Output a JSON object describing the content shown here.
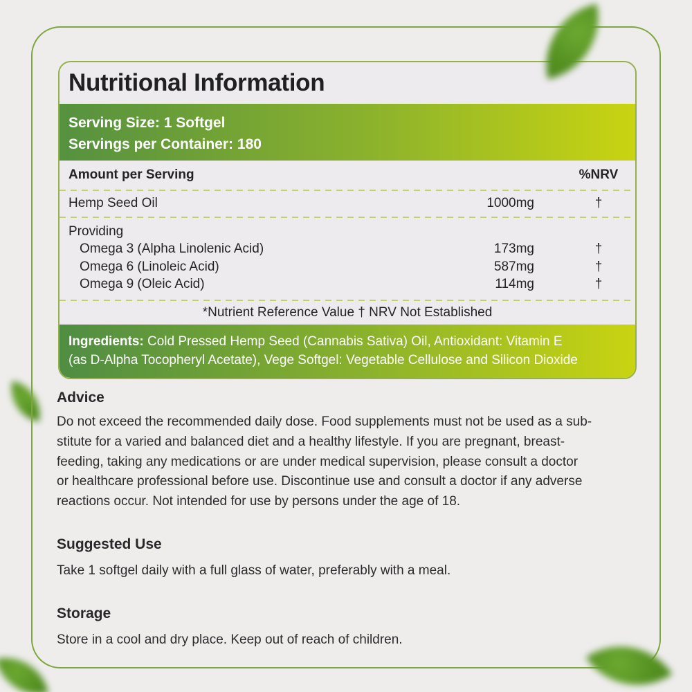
{
  "colors": {
    "page_bg": "#eeedec",
    "panel_bg": "#edebee",
    "frame_green": "#7ea740",
    "gradient_start": "#55913f",
    "gradient_end": "#c9d411",
    "dash_green": "#c3cf72",
    "leaf_green": "#549021",
    "text_dark": "#202023",
    "text_white": "#ffffff"
  },
  "panel": {
    "title": "Nutritional Information",
    "serving": {
      "size_line": "Serving Size: 1 Softgel",
      "container_line": "Servings per Container: 180"
    },
    "table": {
      "header_left": "Amount per Serving",
      "header_right": "%NRV",
      "rows": [
        {
          "name": "Hemp Seed Oil",
          "amount": "1000mg",
          "nrv": "†"
        },
        {
          "name": "Providing",
          "amount": "",
          "nrv": ""
        },
        {
          "name": "Omega 3 (Alpha Linolenic Acid)",
          "amount": "173mg",
          "nrv": "†"
        },
        {
          "name": "Omega 6 (Linoleic Acid)",
          "amount": "587mg",
          "nrv": "†"
        },
        {
          "name": "Omega 9 (Oleic Acid)",
          "amount": "114mg",
          "nrv": "†"
        }
      ],
      "footnote": "*Nutrient Reference Value † NRV Not Established"
    },
    "ingredients": {
      "label": "Ingredients:",
      "line1": " Cold Pressed Hemp Seed (Cannabis Sativa) Oil, Antioxidant: Vitamin E",
      "line2": "(as D-Alpha Tocopheryl Acetate), Vege Softgel: Vegetable Cellulose and Silicon Dioxide"
    }
  },
  "sections": [
    {
      "heading": "Advice",
      "lines": [
        "Do not exceed the recommended daily dose. Food supplements must not be used as a sub-",
        "stitute for a varied and balanced diet and a healthy lifestyle. If you are pregnant, breast-",
        "feeding, taking any medications or are under medical supervision, please consult a doctor",
        "or healthcare professional before use. Discontinue use and consult a doctor if any adverse",
        "reactions occur. Not intended for use by persons under the age of 18."
      ]
    },
    {
      "heading": "Suggested Use",
      "lines": [
        "Take 1 softgel daily with a full glass of water, preferably with a meal."
      ]
    },
    {
      "heading": "Storage",
      "lines": [
        "Store in a cool and dry place. Keep out of reach of children."
      ]
    }
  ]
}
